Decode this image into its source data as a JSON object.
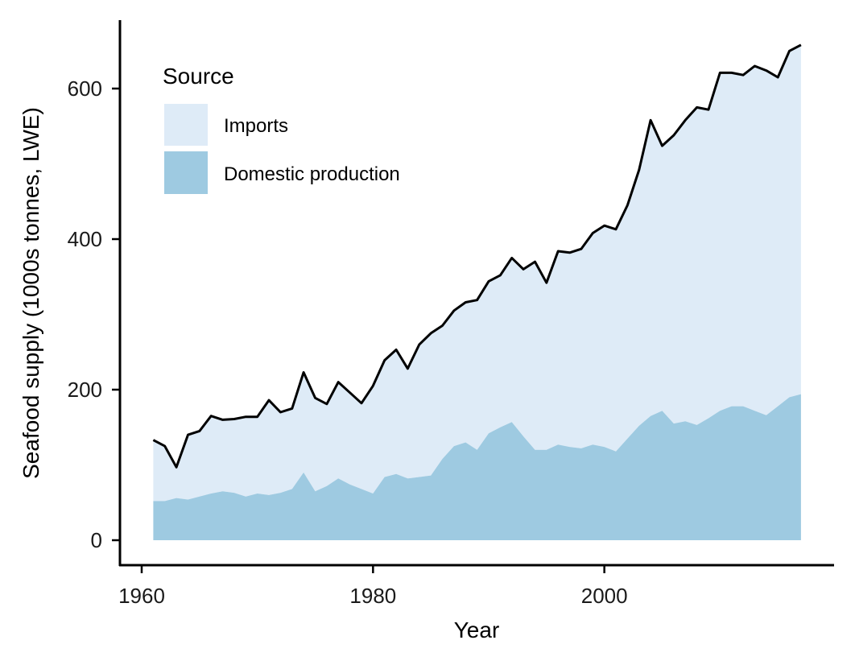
{
  "chart_data": {
    "type": "area",
    "stacked": true,
    "xlabel": "Year",
    "ylabel": "Seafood supply (1000s tonnes, LWE)",
    "xlim": [
      1960,
      2020
    ],
    "ylim": [
      -30,
      690
    ],
    "x_ticks": [
      1960,
      1980,
      2000
    ],
    "y_ticks": [
      0,
      200,
      400,
      600
    ],
    "grid": false,
    "legend": {
      "title": "Source",
      "placement": "top-left",
      "entries": [
        {
          "label": "Imports",
          "color": "#deebf7"
        },
        {
          "label": "Domestic production",
          "color": "#9ecae1"
        }
      ]
    },
    "x": [
      1961,
      1962,
      1963,
      1964,
      1965,
      1966,
      1967,
      1968,
      1969,
      1970,
      1971,
      1972,
      1973,
      1974,
      1975,
      1976,
      1977,
      1978,
      1979,
      1980,
      1981,
      1982,
      1983,
      1984,
      1985,
      1986,
      1987,
      1988,
      1989,
      1990,
      1991,
      1992,
      1993,
      1994,
      1995,
      1996,
      1997,
      1998,
      1999,
      2000,
      2001,
      2002,
      2003,
      2004,
      2005,
      2006,
      2007,
      2008,
      2009,
      2010,
      2011,
      2012,
      2013,
      2014,
      2015,
      2016,
      2017
    ],
    "series": [
      {
        "name": "Domestic production",
        "color": "#9ecae1",
        "values": [
          52,
          52,
          56,
          54,
          58,
          62,
          65,
          63,
          58,
          62,
          60,
          63,
          68,
          90,
          65,
          72,
          82,
          74,
          68,
          62,
          84,
          88,
          82,
          84,
          86,
          108,
          125,
          130,
          120,
          142,
          150,
          157,
          138,
          120,
          120,
          127,
          124,
          122,
          127,
          124,
          118,
          135,
          152,
          165,
          172,
          155,
          158,
          153,
          162,
          172,
          178,
          178,
          172,
          166,
          178,
          190,
          194
        ]
      },
      {
        "name": "Imports",
        "color": "#deebf7",
        "values": [
          81,
          73,
          41,
          86,
          87,
          103,
          95,
          98,
          106,
          102,
          126,
          107,
          107,
          133,
          124,
          109,
          128,
          122,
          114,
          143,
          155,
          165,
          146,
          176,
          189,
          177,
          180,
          186,
          199,
          202,
          202,
          218,
          222,
          250,
          222,
          257,
          258,
          265,
          281,
          294,
          295,
          310,
          340,
          393,
          352,
          383,
          400,
          422,
          410,
          449,
          443,
          440,
          458,
          458,
          437,
          460,
          464
        ]
      },
      {
        "name": "Total",
        "color": "#000000",
        "values": [
          133,
          125,
          97,
          140,
          145,
          165,
          160,
          161,
          164,
          164,
          186,
          170,
          175,
          223,
          189,
          181,
          210,
          196,
          182,
          205,
          239,
          253,
          228,
          260,
          275,
          285,
          305,
          316,
          319,
          344,
          352,
          375,
          360,
          370,
          342,
          384,
          382,
          387,
          408,
          418,
          413,
          445,
          492,
          558,
          524,
          538,
          558,
          575,
          572,
          621,
          621,
          618,
          630,
          624,
          615,
          650,
          658
        ]
      }
    ]
  }
}
